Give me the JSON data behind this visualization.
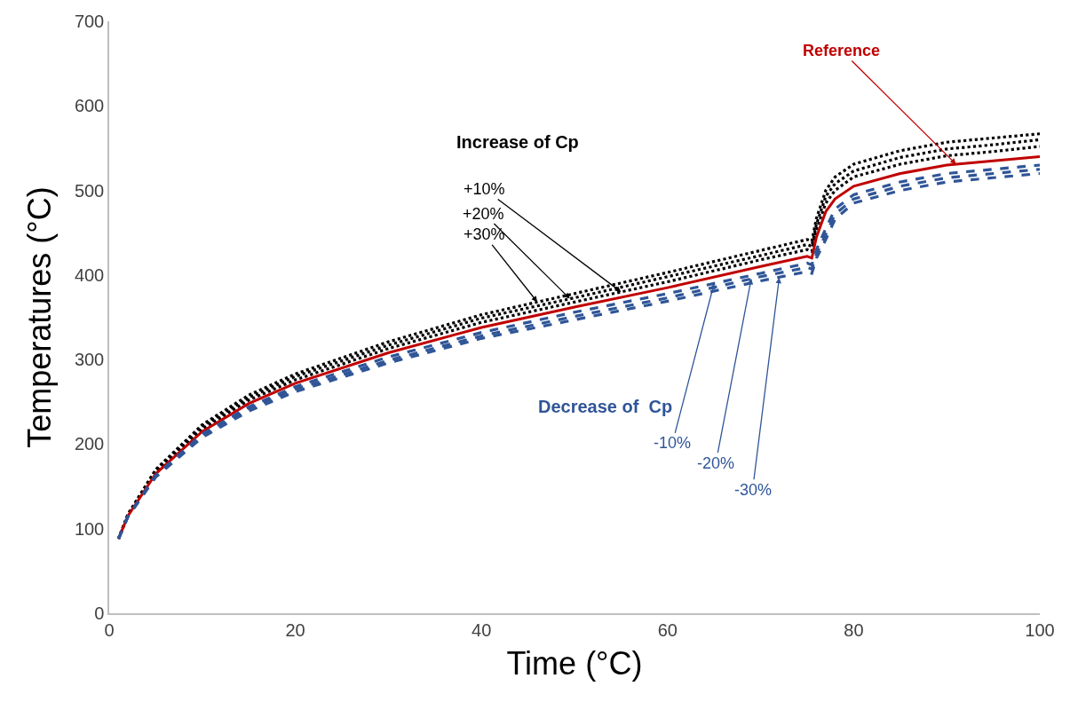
{
  "chart_data": {
    "type": "line",
    "xlabel": "Time (°C)",
    "ylabel": "Temperatures (°C)",
    "x": [
      1,
      2,
      5,
      10,
      15,
      20,
      30,
      40,
      50,
      60,
      70,
      75,
      75.5,
      76,
      77,
      78,
      80,
      85,
      90,
      95,
      100
    ],
    "xlim": [
      0,
      100
    ],
    "xticks": [
      0,
      20,
      40,
      60,
      80,
      100
    ],
    "ylim": [
      0,
      700
    ],
    "yticks": [
      0,
      100,
      200,
      300,
      400,
      500,
      600,
      700
    ],
    "marker": "none",
    "series": [
      {
        "color": "#000000",
        "line_style": "dotted",
        "values": [
          88,
          116,
          167,
          218,
          252,
          276,
          313,
          344,
          368,
          392,
          418,
          430,
          428,
          454,
          485,
          500,
          516,
          531,
          541,
          546,
          552
        ]
      },
      {
        "color": "#000000",
        "line_style": "dotted",
        "values": [
          88,
          116,
          169,
          221,
          255,
          280,
          317,
          349,
          373,
          398,
          423,
          436,
          434,
          460,
          493,
          508,
          523,
          539,
          549,
          554,
          560
        ]
      },
      {
        "color": "#000000",
        "line_style": "dotted",
        "values": [
          88,
          117,
          170,
          223,
          258,
          283,
          321,
          353,
          378,
          403,
          429,
          442,
          440,
          467,
          500,
          516,
          531,
          547,
          557,
          562,
          567
        ]
      },
      {
        "color": "#c00000",
        "line_style": "solid",
        "values": [
          88,
          115,
          165,
          215,
          248,
          272,
          308,
          338,
          362,
          385,
          410,
          422,
          420,
          445,
          475,
          490,
          505,
          520,
          530,
          535,
          540
        ]
      },
      {
        "color": "#2f5597",
        "line_style": "dashed",
        "values": [
          88,
          114,
          163,
          212,
          244,
          268,
          303,
          332,
          356,
          378,
          402,
          414,
          412,
          430,
          455,
          478,
          495,
          510,
          520,
          525,
          530
        ]
      },
      {
        "color": "#2f5597",
        "line_style": "dashed",
        "values": [
          88,
          114,
          162,
          210,
          242,
          265,
          299,
          328,
          351,
          373,
          398,
          409,
          407,
          425,
          448,
          472,
          490,
          505,
          515,
          520,
          525
        ]
      },
      {
        "color": "#2f5597",
        "line_style": "dashed",
        "values": [
          88,
          114,
          161,
          208,
          239,
          262,
          296,
          325,
          347,
          369,
          393,
          404,
          402,
          420,
          442,
          466,
          485,
          500,
          510,
          515,
          520
        ]
      }
    ],
    "annotations": [
      "Increase of Cp",
      {
        "text": "+10%",
        "x": 55,
        "y": 380
      },
      {
        "text": "+20%",
        "x": 49.5,
        "y": 372
      },
      {
        "text": "+30%",
        "x": 46,
        "y": 368
      },
      {
        "text": "Reference",
        "x": 91,
        "y": 531
      },
      "Decrease of  Cp",
      {
        "text": "-10%",
        "x": 65,
        "y": 390
      },
      {
        "text": "-20%",
        "x": 69,
        "y": 396
      },
      {
        "text": "-30%",
        "x": 72,
        "y": 397
      }
    ]
  }
}
